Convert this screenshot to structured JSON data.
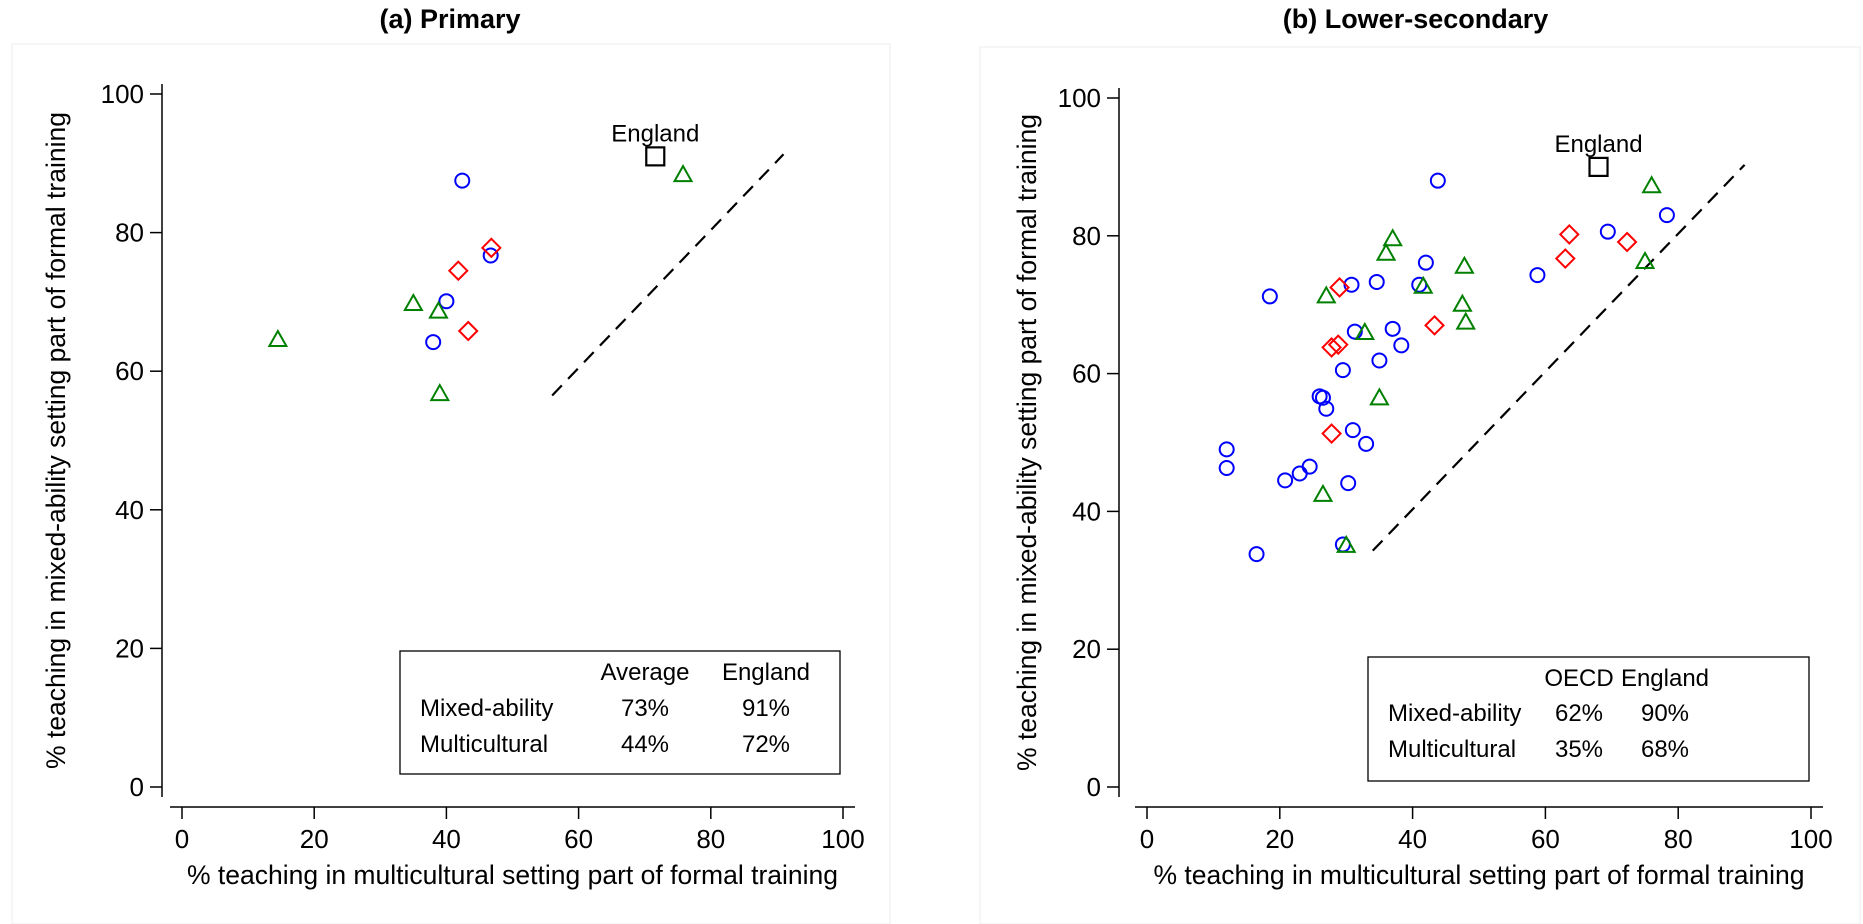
{
  "chart_data": [
    {
      "type": "scatter",
      "title": "(a) Primary",
      "xlabel": "% teaching in multicultural setting part of formal training",
      "ylabel": "% teaching in mixed-ability setting part of formal training",
      "xlim": [
        0,
        100
      ],
      "ylim": [
        0,
        100
      ],
      "xticks": [
        0,
        20,
        40,
        60,
        80,
        100
      ],
      "yticks": [
        0,
        20,
        40,
        60,
        80,
        100
      ],
      "grid": false,
      "series": [
        {
          "marker": "circle",
          "color": "#0000ff",
          "points": [
            [
              42.4,
              87.5
            ],
            [
              40.0,
              70.1
            ],
            [
              38.0,
              64.2
            ],
            [
              46.7,
              76.7
            ]
          ]
        },
        {
          "marker": "diamond",
          "color": "#ff0000",
          "points": [
            [
              41.8,
              74.5
            ],
            [
              46.8,
              77.8
            ],
            [
              43.3,
              65.8
            ]
          ]
        },
        {
          "marker": "triangle",
          "color": "#008000",
          "points": [
            [
              14.5,
              64.5
            ],
            [
              35.0,
              69.7
            ],
            [
              38.8,
              68.6
            ],
            [
              39.0,
              56.7
            ],
            [
              75.8,
              88.3
            ]
          ]
        },
        {
          "marker": "square",
          "color": "#000000",
          "label": "England",
          "points": [
            [
              71.6,
              91.0
            ]
          ]
        }
      ],
      "reference_line": {
        "style": "dashed",
        "color": "#000000",
        "from": [
          56,
          56.5
        ],
        "to": [
          91,
          91.3
        ]
      },
      "legend_table": {
        "headers": [
          "",
          "Average",
          "England"
        ],
        "rows": [
          [
            "Mixed-ability",
            "73%",
            "91%"
          ],
          [
            "Multicultural",
            "44%",
            "72%"
          ]
        ]
      }
    },
    {
      "type": "scatter",
      "title": "(b) Lower-secondary",
      "xlabel": "% teaching in multicultural setting part of formal training",
      "ylabel": "% teaching in mixed-ability setting part of formal training",
      "xlim": [
        0,
        100
      ],
      "ylim": [
        0,
        100
      ],
      "xticks": [
        0,
        20,
        40,
        60,
        80,
        100
      ],
      "yticks": [
        0,
        20,
        40,
        60,
        80,
        100
      ],
      "grid": false,
      "series": [
        {
          "marker": "circle",
          "color": "#0000ff",
          "points": [
            [
              12.0,
              49.0
            ],
            [
              12.0,
              46.3
            ],
            [
              18.5,
              71.2
            ],
            [
              16.5,
              33.8
            ],
            [
              20.8,
              44.5
            ],
            [
              23.0,
              45.5
            ],
            [
              24.5,
              46.5
            ],
            [
              26.0,
              56.7
            ],
            [
              26.5,
              56.5
            ],
            [
              27.0,
              54.9
            ],
            [
              29.5,
              60.5
            ],
            [
              29.5,
              35.2
            ],
            [
              30.3,
              44.1
            ],
            [
              30.8,
              72.9
            ],
            [
              31.0,
              51.8
            ],
            [
              31.3,
              66.1
            ],
            [
              33.0,
              49.8
            ],
            [
              34.6,
              73.3
            ],
            [
              35.0,
              61.9
            ],
            [
              37.0,
              66.5
            ],
            [
              38.3,
              64.1
            ],
            [
              41.0,
              72.9
            ],
            [
              42.0,
              76.1
            ],
            [
              43.8,
              88.0
            ],
            [
              58.8,
              74.3
            ],
            [
              69.4,
              80.6
            ],
            [
              78.3,
              83.0
            ]
          ]
        },
        {
          "marker": "diamond",
          "color": "#ff0000",
          "points": [
            [
              29.0,
              72.5
            ],
            [
              27.8,
              63.8
            ],
            [
              28.8,
              64.2
            ],
            [
              27.8,
              51.3
            ],
            [
              43.3,
              67.0
            ],
            [
              63.0,
              76.7
            ],
            [
              63.6,
              80.2
            ],
            [
              72.3,
              79.1
            ]
          ]
        },
        {
          "marker": "triangle",
          "color": "#008000",
          "points": [
            [
              27.0,
              71.2
            ],
            [
              32.8,
              65.9
            ],
            [
              36.0,
              77.4
            ],
            [
              37.0,
              79.5
            ],
            [
              41.6,
              72.6
            ],
            [
              47.5,
              70.0
            ],
            [
              47.8,
              75.5
            ],
            [
              48.0,
              67.4
            ],
            [
              35.0,
              56.4
            ],
            [
              26.5,
              42.4
            ],
            [
              30.0,
              35.0
            ],
            [
              75.0,
              76.2
            ],
            [
              76.0,
              87.2
            ]
          ]
        },
        {
          "marker": "square",
          "color": "#000000",
          "label": "England",
          "points": [
            [
              68.0,
              90.0
            ]
          ]
        }
      ],
      "reference_line": {
        "style": "dashed",
        "color": "#000000",
        "from": [
          34,
          34.3
        ],
        "to": [
          90,
          90.3
        ]
      },
      "legend_table": {
        "headers": [
          "",
          "OECD",
          "England"
        ],
        "rows": [
          [
            "Mixed-ability",
            "62%",
            "90%"
          ],
          [
            "Multicultural",
            "35%",
            "68%"
          ]
        ]
      }
    }
  ]
}
